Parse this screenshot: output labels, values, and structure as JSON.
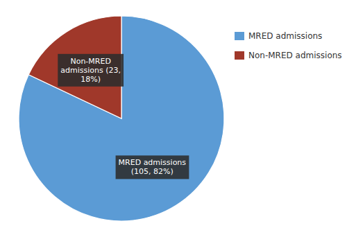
{
  "chart_data": {
    "type": "pie",
    "categories": [
      "MRED admissions",
      "Non-MRED admissions"
    ],
    "values": [
      105,
      23
    ],
    "value_labels": [
      "MRED admissions\n(105, 82%)",
      "Non-MRED\nadmissions (23,\n18%)"
    ],
    "colors": [
      "#5B9BD5",
      "#A0382A"
    ],
    "data_labels": true,
    "legend": "right"
  }
}
